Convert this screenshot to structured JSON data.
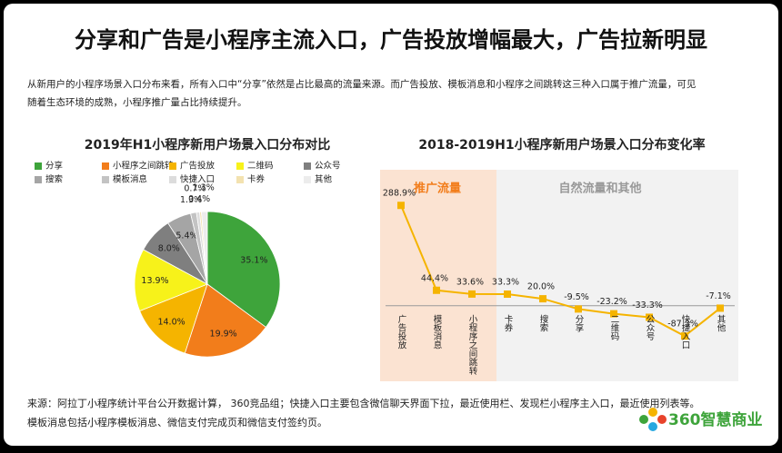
{
  "header": {
    "title": "分享和广告是小程序主流入口，广告投放增幅最大，广告拉新明显"
  },
  "intro": [
    "从新用户的小程序场景入口分布来看，所有入口中“分享”依然是占比最高的流量来源。而广告投放、模板消息和小程序之间跳转这三种入口属于推广流量，可见",
    "随着生态环境的成熟，小程序推广量占比持续提升。"
  ],
  "chart_data": [
    {
      "type": "pie",
      "title": "2019年H1小程序新用户场景入口分布对比",
      "categories": [
        "分享",
        "小程序之间跳转",
        "广告投放",
        "二维码",
        "公众号",
        "搜索",
        "模板消息",
        "快捷入口",
        "卡券",
        "其他"
      ],
      "values": [
        35.1,
        19.9,
        14.0,
        13.9,
        8.0,
        5.4,
        1.3,
        0.7,
        0.4,
        1.3
      ],
      "value_labels": [
        "35.1%",
        "19.9%",
        "14.0%",
        "13.9%",
        "8.0%",
        "5.4%",
        "1.3%",
        "0.7%",
        "0.4%",
        "1.3%"
      ],
      "colors": [
        "#3ea43b",
        "#f27d1b",
        "#f5b400",
        "#f7f21a",
        "#7f7f7f",
        "#a5a5a5",
        "#c3c3c3",
        "#dcdcdc",
        "#f3e2b0",
        "#ececec"
      ],
      "legend": "top"
    },
    {
      "type": "line",
      "title": "2018-2019H1小程序新用户场景入口分布变化率",
      "categories": [
        "广告投放",
        "模板消息",
        "小程序之间跳转",
        "卡券",
        "搜索",
        "分享",
        "二维码",
        "公众号",
        "快捷入口",
        "其他"
      ],
      "values": [
        288.9,
        44.4,
        33.6,
        33.3,
        20.0,
        -9.5,
        -23.2,
        -33.3,
        -87.3,
        -7.1
      ],
      "value_labels": [
        "288.9%",
        "44.4%",
        "33.6%",
        "33.3%",
        "20.0%",
        "-9.5%",
        "-23.2%",
        "-33.3%",
        "-87.3%",
        "-7.1%"
      ],
      "color": "#f5b400",
      "ylim": [
        -100,
        300
      ],
      "annotations": [
        "推广流量",
        "自然流量和其他"
      ]
    }
  ],
  "footnote": [
    "来源：阿拉丁小程序统计平台公开数据计算， 360竞品组；快捷入口主要包含微信聊天界面下拉，最近使用栏、发现栏小程序主入口，最近使用列表等。",
    "模板消息包括小程序模板消息、微信支付完成页和微信支付签约页。"
  ],
  "logo": "360智慧商业"
}
